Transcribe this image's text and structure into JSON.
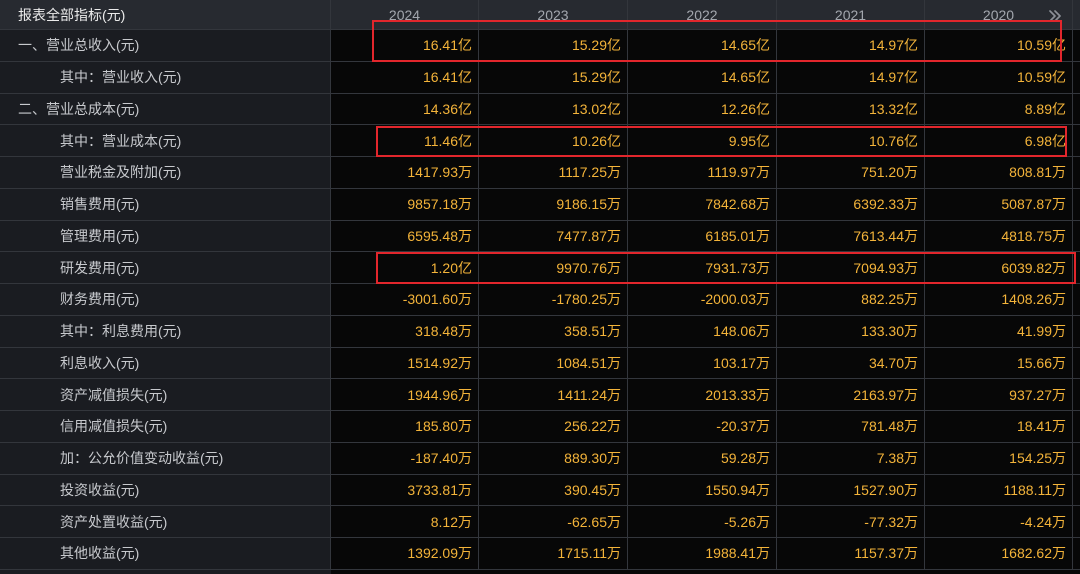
{
  "header": {
    "title": "报表全部指标(元)",
    "years": [
      "2024",
      "2023",
      "2022",
      "2021",
      "2020"
    ],
    "more_icon": "double-chevron-right-icon"
  },
  "rows": [
    {
      "label": "一、营业总收入(元)",
      "values": [
        "16.41亿",
        "15.29亿",
        "14.65亿",
        "14.97亿",
        "10.59亿"
      ]
    },
    {
      "label": "其中：营业收入(元)",
      "values": [
        "16.41亿",
        "15.29亿",
        "14.65亿",
        "14.97亿",
        "10.59亿"
      ]
    },
    {
      "label": "二、营业总成本(元)",
      "values": [
        "14.36亿",
        "13.02亿",
        "12.26亿",
        "13.32亿",
        "8.89亿"
      ]
    },
    {
      "label": "其中：营业成本(元)",
      "values": [
        "11.46亿",
        "10.26亿",
        "9.95亿",
        "10.76亿",
        "6.98亿"
      ]
    },
    {
      "label": "营业税金及附加(元)",
      "values": [
        "1417.93万",
        "1117.25万",
        "1119.97万",
        "751.20万",
        "808.81万"
      ]
    },
    {
      "label": "销售费用(元)",
      "values": [
        "9857.18万",
        "9186.15万",
        "7842.68万",
        "6392.33万",
        "5087.87万"
      ]
    },
    {
      "label": "管理费用(元)",
      "values": [
        "6595.48万",
        "7477.87万",
        "6185.01万",
        "7613.44万",
        "4818.75万"
      ]
    },
    {
      "label": "研发费用(元)",
      "values": [
        "1.20亿",
        "9970.76万",
        "7931.73万",
        "7094.93万",
        "6039.82万"
      ]
    },
    {
      "label": "财务费用(元)",
      "values": [
        "-3001.60万",
        "-1780.25万",
        "-2000.03万",
        "882.25万",
        "1408.26万"
      ]
    },
    {
      "label": "其中：利息费用(元)",
      "values": [
        "318.48万",
        "358.51万",
        "148.06万",
        "133.30万",
        "41.99万"
      ]
    },
    {
      "label": "利息收入(元)",
      "values": [
        "1514.92万",
        "1084.51万",
        "103.17万",
        "34.70万",
        "15.66万"
      ]
    },
    {
      "label": "资产减值损失(元)",
      "values": [
        "1944.96万",
        "1411.24万",
        "2013.33万",
        "2163.97万",
        "937.27万"
      ]
    },
    {
      "label": "信用减值损失(元)",
      "values": [
        "185.80万",
        "256.22万",
        "-20.37万",
        "781.48万",
        "18.41万"
      ]
    },
    {
      "label": "加：公允价值变动收益(元)",
      "values": [
        "-187.40万",
        "889.30万",
        "59.28万",
        "7.38万",
        "154.25万"
      ]
    },
    {
      "label": "投资收益(元)",
      "values": [
        "3733.81万",
        "390.45万",
        "1550.94万",
        "1527.90万",
        "1188.11万"
      ]
    },
    {
      "label": "资产处置收益(元)",
      "values": [
        "8.12万",
        "-62.65万",
        "-5.26万",
        "-77.32万",
        "-4.24万"
      ]
    },
    {
      "label": "其他收益(元)",
      "values": [
        "1392.09万",
        "1715.11万",
        "1988.41万",
        "1157.37万",
        "1682.62万"
      ]
    }
  ],
  "colors": {
    "page_bg": "#0a0a0b",
    "header_bg": "#272a30",
    "label_bg": "#1a1c21",
    "value_bg": "#070707",
    "grid_line": "#33363c",
    "header_title_text": "#ebebeb",
    "year_text": "#a3a7ae",
    "label_text": "#c7c9cd",
    "value_text": "#f4b43a",
    "highlight_box": "#e2262c",
    "icon_color": "#8c9097"
  }
}
